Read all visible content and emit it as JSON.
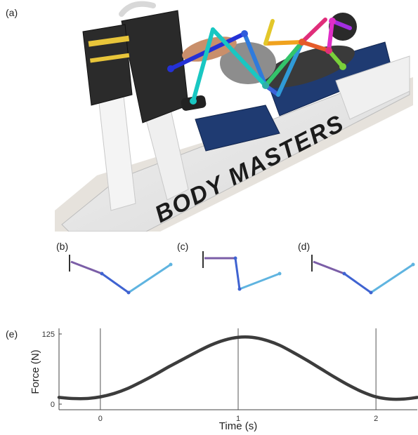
{
  "panels": {
    "a": "(a)",
    "b": "(b)",
    "c": "(c)",
    "d": "(d)",
    "e": "(e)"
  },
  "photo": {
    "banner_text": "BODY MASTERS"
  },
  "colors": {
    "pose_gradient_start": "#7b5ea7",
    "pose_gradient_mid": "#3f63d1",
    "pose_gradient_end": "#5fb4e0",
    "force_line": "#3c3c3c"
  },
  "chart_data": {
    "type": "line",
    "xlabel": "Time (s)",
    "ylabel": "Force (N)",
    "xlim": [
      -0.3,
      2.3
    ],
    "ylim": [
      -10,
      135
    ],
    "xticks": [
      0,
      1,
      2
    ],
    "xtick_labels": [
      "0",
      "1",
      "2"
    ],
    "yticks": [
      0,
      125
    ],
    "ytick_labels": [
      "0",
      "125"
    ],
    "vertical_lines": [
      0,
      1,
      2
    ],
    "series": [
      {
        "x": [
          -0.3,
          -0.2,
          -0.1,
          0,
          0.1,
          0.2,
          0.3,
          0.4,
          0.5,
          0.6,
          0.7,
          0.8,
          0.9,
          1.0,
          1.1,
          1.2,
          1.3,
          1.4,
          1.5,
          1.6,
          1.7,
          1.8,
          1.9,
          2.0,
          2.1,
          2.2,
          2.3
        ],
        "y": [
          12,
          10,
          10,
          13,
          19,
          28,
          40,
          53,
          67,
          80,
          93,
          105,
          114,
          119,
          119,
          114,
          105,
          92,
          78,
          63,
          48,
          34,
          22,
          13,
          9,
          9,
          12
        ]
      }
    ]
  }
}
